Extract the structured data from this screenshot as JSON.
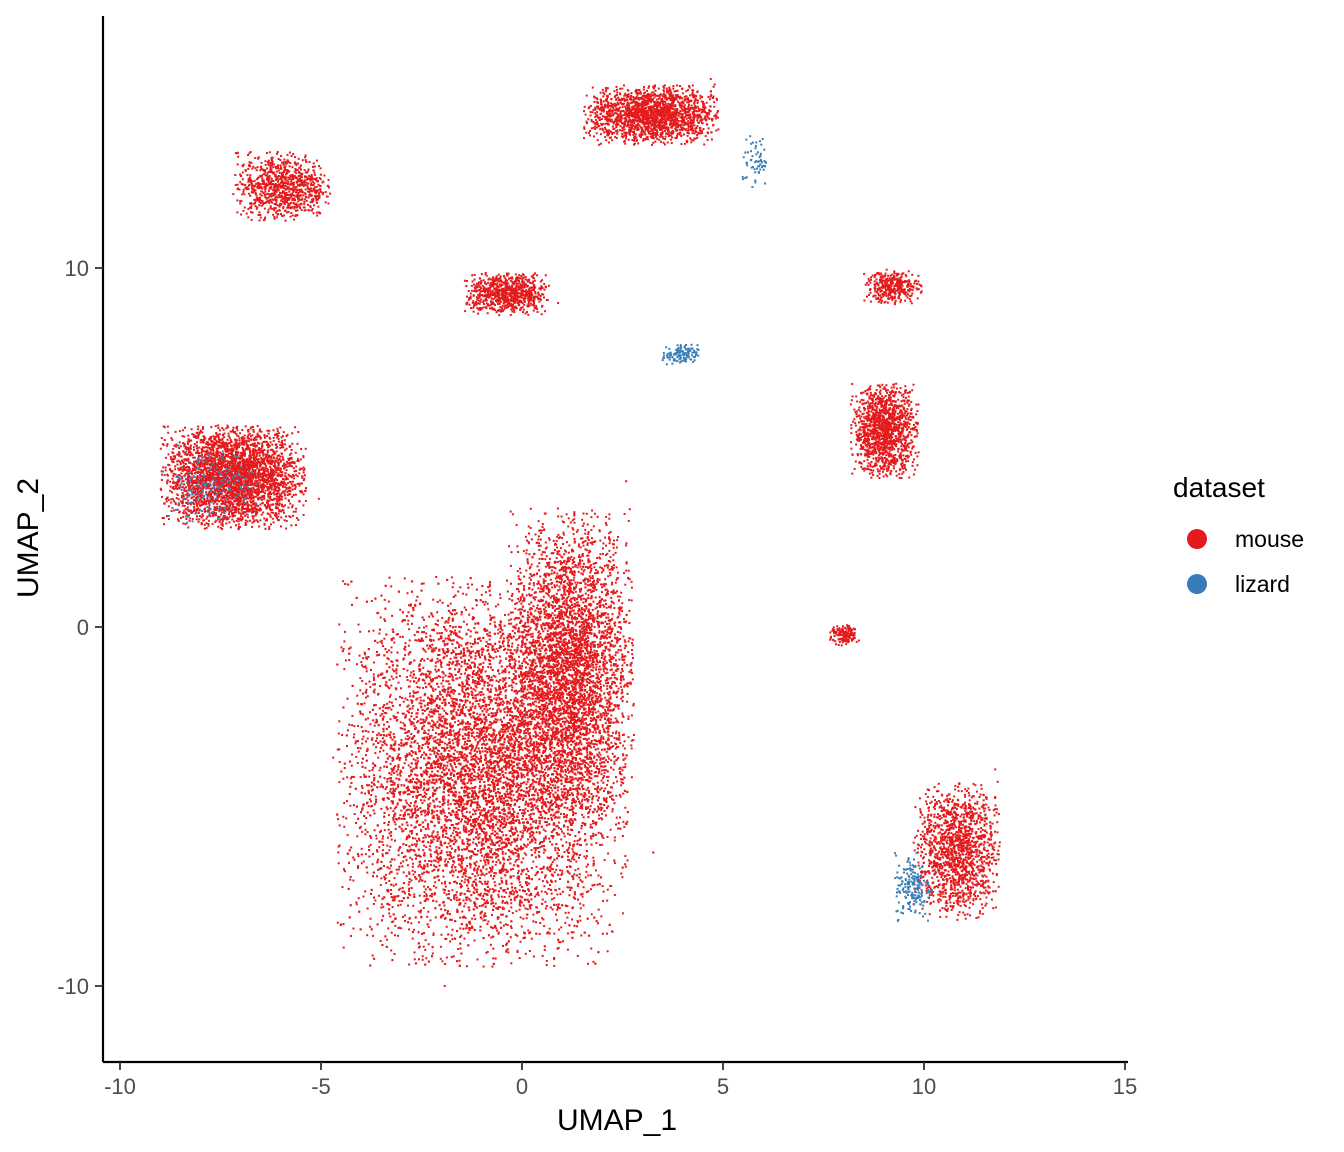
{
  "chart_data": {
    "type": "scatter",
    "xlabel": "UMAP_1",
    "ylabel": "UMAP_2",
    "xlim": [
      -10.4,
      15.0
    ],
    "ylim": [
      -12.2,
      17.0
    ],
    "x_ticks": [
      -10,
      -5,
      0,
      5,
      10,
      15
    ],
    "y_ticks": [
      -10,
      0,
      10
    ],
    "x_tick_labels": [
      "-10",
      "-5",
      "0",
      "5",
      "10",
      "15"
    ],
    "y_tick_labels": [
      "-10",
      "0",
      "10"
    ],
    "grid": false,
    "legend": {
      "title": "dataset",
      "position": "right",
      "entries": [
        {
          "label": "mouse",
          "color": "#E41A1C"
        },
        {
          "label": "lizard",
          "color": "#377EB8"
        }
      ]
    },
    "series": [
      {
        "name": "mouse",
        "color": "#E41A1C",
        "clusters": [
          {
            "label": "large-lower-left",
            "center": [
              -1.0,
              -4.0
            ],
            "spread": [
              3.0,
              4.5
            ],
            "points": 9000
          },
          {
            "label": "large-lower-right-lobe",
            "center": [
              1.2,
              -1.0
            ],
            "spread": [
              1.3,
              3.6
            ],
            "points": 3500
          },
          {
            "label": "upper-left-lobe",
            "center": [
              -7.2,
              4.2
            ],
            "spread": [
              1.5,
              1.2
            ],
            "points": 3200
          },
          {
            "label": "top-arc",
            "center": [
              3.2,
              14.3
            ],
            "spread": [
              1.4,
              0.7
            ],
            "points": 1800
          },
          {
            "label": "top-left-wing",
            "center": [
              -6.0,
              12.3
            ],
            "spread": [
              1.0,
              0.8
            ],
            "points": 900
          },
          {
            "label": "middle-oval",
            "center": [
              -0.4,
              9.3
            ],
            "spread": [
              0.9,
              0.5
            ],
            "points": 800
          },
          {
            "label": "right-triangle",
            "center": [
              9.0,
              5.5
            ],
            "spread": [
              0.7,
              1.1
            ],
            "points": 1300
          },
          {
            "label": "right-top-arm",
            "center": [
              9.2,
              9.5
            ],
            "spread": [
              0.6,
              0.4
            ],
            "points": 350
          },
          {
            "label": "lower-right-cluster",
            "center": [
              10.8,
              -6.2
            ],
            "spread": [
              0.9,
              1.6
            ],
            "points": 1400
          },
          {
            "label": "small-mid",
            "center": [
              8.0,
              -0.2
            ],
            "spread": [
              0.3,
              0.25
            ],
            "points": 150
          }
        ]
      },
      {
        "name": "lizard",
        "color": "#377EB8",
        "clusters": [
          {
            "label": "small-center",
            "center": [
              3.9,
              7.6
            ],
            "spread": [
              0.4,
              0.25
            ],
            "points": 120
          },
          {
            "label": "top-arc-tail",
            "center": [
              5.8,
              13.0
            ],
            "spread": [
              0.3,
              0.6
            ],
            "points": 60
          },
          {
            "label": "lower-right",
            "center": [
              9.7,
              -7.2
            ],
            "spread": [
              0.4,
              0.8
            ],
            "points": 180
          },
          {
            "label": "upper-left",
            "center": [
              -7.8,
              4.0
            ],
            "spread": [
              1.0,
              0.9
            ],
            "points": 160
          }
        ]
      }
    ]
  }
}
